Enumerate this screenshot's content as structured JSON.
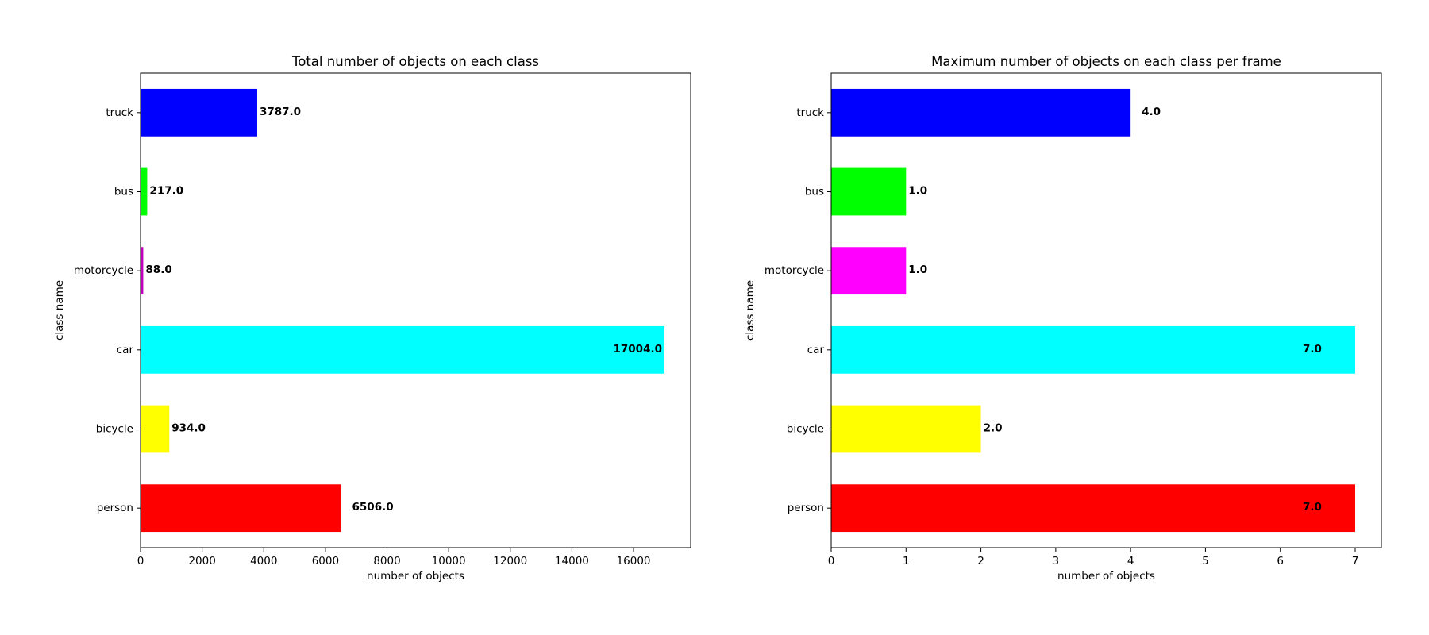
{
  "chart_data": [
    {
      "type": "bar",
      "orientation": "horizontal",
      "title": "Total number of objects on each class",
      "xlabel": "number of objects",
      "ylabel": "class name",
      "categories": [
        "person",
        "bicycle",
        "car",
        "motorcycle",
        "bus",
        "truck"
      ],
      "values": [
        6506.0,
        934.0,
        17004.0,
        88.0,
        217.0,
        3787.0
      ],
      "value_labels": [
        "6506.0",
        "934.0",
        "17004.0",
        "88.0",
        "217.0",
        "3787.0"
      ],
      "colors": [
        "#ff0000",
        "#ffff00",
        "#00ffff",
        "#bf00bf",
        "#00ff00",
        "#0000ff"
      ],
      "xlim": [
        0,
        17854
      ],
      "xticks": [
        0,
        2000,
        4000,
        6000,
        8000,
        10000,
        12000,
        14000,
        16000
      ],
      "xtick_labels": [
        "0",
        "2000",
        "4000",
        "6000",
        "8000",
        "10000",
        "12000",
        "14000",
        "16000"
      ],
      "grid": false,
      "legend": "none"
    },
    {
      "type": "bar",
      "orientation": "horizontal",
      "title": "Maximum number of objects on each class per frame",
      "xlabel": "number of objects",
      "ylabel": "class name",
      "categories": [
        "person",
        "bicycle",
        "car",
        "motorcycle",
        "bus",
        "truck"
      ],
      "values": [
        7.0,
        2.0,
        7.0,
        1.0,
        1.0,
        4.0
      ],
      "value_labels": [
        "7.0",
        "2.0",
        "7.0",
        "1.0",
        "1.0",
        "4.0"
      ],
      "colors": [
        "#ff0000",
        "#ffff00",
        "#00ffff",
        "#ff00ff",
        "#00ff00",
        "#0000ff"
      ],
      "xlim": [
        0,
        7.35
      ],
      "xticks": [
        0,
        1,
        2,
        3,
        4,
        5,
        6,
        7
      ],
      "xtick_labels": [
        "0",
        "1",
        "2",
        "3",
        "4",
        "5",
        "6",
        "7"
      ],
      "grid": false,
      "legend": "none"
    }
  ]
}
